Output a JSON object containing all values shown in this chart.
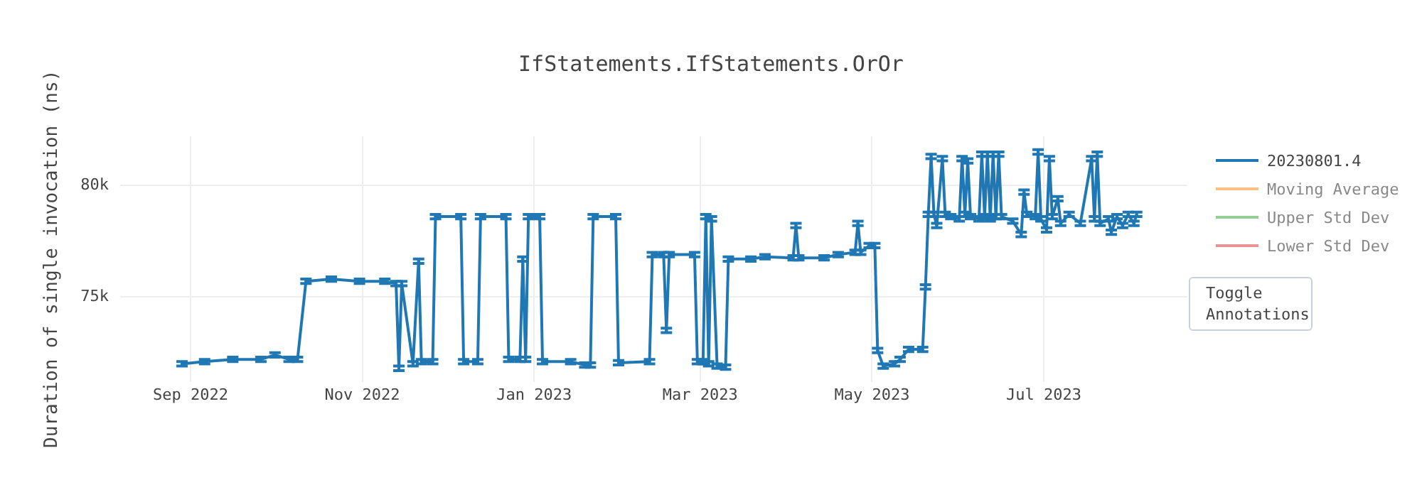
{
  "chart_data": {
    "type": "line",
    "title": "IfStatements.IfStatements.OrOr",
    "ylabel": "Duration of single invocation (ns)",
    "xlim": [
      "2022-08-07",
      "2023-08-21"
    ],
    "xticks": [
      {
        "value": "2022-09-01",
        "label": "Sep 2022"
      },
      {
        "value": "2022-11-01",
        "label": "Nov 2022"
      },
      {
        "value": "2023-01-01",
        "label": "Jan 2023"
      },
      {
        "value": "2023-03-01",
        "label": "Mar 2023"
      },
      {
        "value": "2023-05-01",
        "label": "May 2023"
      },
      {
        "value": "2023-07-01",
        "label": "Jul 2023"
      }
    ],
    "ylim": [
      71200,
      82200
    ],
    "yticks": [
      {
        "value": 75000,
        "label": "75k"
      },
      {
        "value": 80000,
        "label": "80k"
      }
    ],
    "grid": true,
    "legend": "top right",
    "marker": "none",
    "line_style": "solid",
    "annotations": [
      "Toggle Annotations"
    ],
    "series": [
      {
        "name": "20230801.4",
        "color": "#1f77b4",
        "x": [
          "2022-08-29",
          "2022-09-06",
          "2022-09-16",
          "2022-09-26",
          "2022-10-01",
          "2022-10-06",
          "2022-10-09",
          "2022-10-12",
          "2022-10-21",
          "2022-10-31",
          "2022-11-09",
          "2022-11-13",
          "2022-11-14",
          "2022-11-15",
          "2022-11-19",
          "2022-11-21",
          "2022-11-22",
          "2022-11-26",
          "2022-11-27",
          "2022-12-06",
          "2022-12-07",
          "2022-12-12",
          "2022-12-13",
          "2022-12-22",
          "2022-12-23",
          "2022-12-27",
          "2022-12-28",
          "2022-12-29",
          "2022-12-30",
          "2023-01-03",
          "2023-01-04",
          "2023-01-14",
          "2023-01-19",
          "2023-01-21",
          "2023-01-22",
          "2023-01-30",
          "2023-01-31",
          "2023-02-11",
          "2023-02-12",
          "2023-02-16",
          "2023-02-17",
          "2023-02-18",
          "2023-02-27",
          "2023-02-28",
          "2023-03-02",
          "2023-03-03",
          "2023-03-04",
          "2023-03-05",
          "2023-03-07",
          "2023-03-10",
          "2023-03-11",
          "2023-03-19",
          "2023-03-24",
          "2023-04-03",
          "2023-04-04",
          "2023-04-05",
          "2023-04-14",
          "2023-04-19",
          "2023-04-25",
          "2023-04-26",
          "2023-04-27",
          "2023-04-30",
          "2023-05-02",
          "2023-05-03",
          "2023-05-05",
          "2023-05-09",
          "2023-05-11",
          "2023-05-14",
          "2023-05-19",
          "2023-05-20",
          "2023-05-21",
          "2023-05-22",
          "2023-05-23",
          "2023-05-24",
          "2023-05-26",
          "2023-05-27",
          "2023-05-29",
          "2023-06-01",
          "2023-06-02",
          "2023-06-03",
          "2023-06-04",
          "2023-06-05",
          "2023-06-08",
          "2023-06-09",
          "2023-06-10",
          "2023-06-11",
          "2023-06-12",
          "2023-06-13",
          "2023-06-14",
          "2023-06-15",
          "2023-06-16",
          "2023-06-20",
          "2023-06-23",
          "2023-06-24",
          "2023-06-25",
          "2023-06-28",
          "2023-06-29",
          "2023-06-30",
          "2023-07-02",
          "2023-07-03",
          "2023-07-04",
          "2023-07-06",
          "2023-07-07",
          "2023-07-10",
          "2023-07-14",
          "2023-07-18",
          "2023-07-19",
          "2023-07-20",
          "2023-07-21",
          "2023-07-24",
          "2023-07-25",
          "2023-07-27",
          "2023-07-29",
          "2023-07-31",
          "2023-08-02",
          "2023-08-03"
        ],
        "values": [
          72000,
          72100,
          72200,
          72200,
          72400,
          72200,
          72200,
          75700,
          75800,
          75700,
          75700,
          75600,
          71800,
          75600,
          72000,
          76600,
          72100,
          72100,
          78600,
          78600,
          72100,
          72100,
          78600,
          78600,
          72200,
          72200,
          76700,
          72200,
          78600,
          78600,
          72100,
          72100,
          71950,
          71950,
          78600,
          78600,
          72050,
          72100,
          76900,
          76900,
          73500,
          76900,
          76900,
          72100,
          72100,
          78600,
          72000,
          78500,
          71900,
          71850,
          76700,
          76700,
          76800,
          76750,
          78200,
          76750,
          76750,
          76900,
          77000,
          78300,
          77000,
          77300,
          77300,
          72600,
          71900,
          72000,
          72200,
          72650,
          72650,
          75450,
          78700,
          81300,
          78700,
          78200,
          81200,
          78700,
          78600,
          78500,
          81200,
          78700,
          81100,
          78600,
          78500,
          81400,
          78600,
          81400,
          78500,
          81400,
          78600,
          81400,
          78600,
          78400,
          77800,
          79700,
          78700,
          78600,
          81500,
          78500,
          78000,
          81200,
          78600,
          79400,
          78300,
          78700,
          78300,
          81200,
          78500,
          81400,
          78300,
          78500,
          77900,
          78600,
          78200,
          78700,
          78300,
          78700
        ],
        "errors": [
          100,
          100,
          100,
          100,
          100,
          100,
          100,
          100,
          100,
          100,
          100,
          100,
          100,
          100,
          100,
          100,
          100,
          100,
          100,
          100,
          100,
          100,
          100,
          100,
          100,
          100,
          100,
          100,
          100,
          100,
          100,
          100,
          100,
          100,
          100,
          100,
          100,
          100,
          100,
          100,
          100,
          100,
          100,
          100,
          100,
          100,
          100,
          100,
          100,
          100,
          100,
          100,
          100,
          100,
          100,
          100,
          100,
          100,
          100,
          100,
          100,
          100,
          100,
          100,
          100,
          100,
          100,
          100,
          100,
          100,
          100,
          100,
          100,
          100,
          100,
          100,
          100,
          100,
          100,
          100,
          100,
          100,
          100,
          100,
          100,
          100,
          100,
          100,
          100,
          100,
          100,
          100,
          100,
          100,
          100,
          100,
          100,
          100,
          100,
          100,
          100,
          100,
          100,
          100,
          100,
          100,
          100,
          100,
          100,
          100,
          100,
          100,
          100,
          100,
          100,
          100
        ]
      },
      {
        "name": "Moving Average",
        "color": "#ff7f0e"
      },
      {
        "name": "Upper Std Dev",
        "color": "#2ca02c"
      },
      {
        "name": "Lower Std Dev",
        "color": "#d62728"
      }
    ]
  }
}
